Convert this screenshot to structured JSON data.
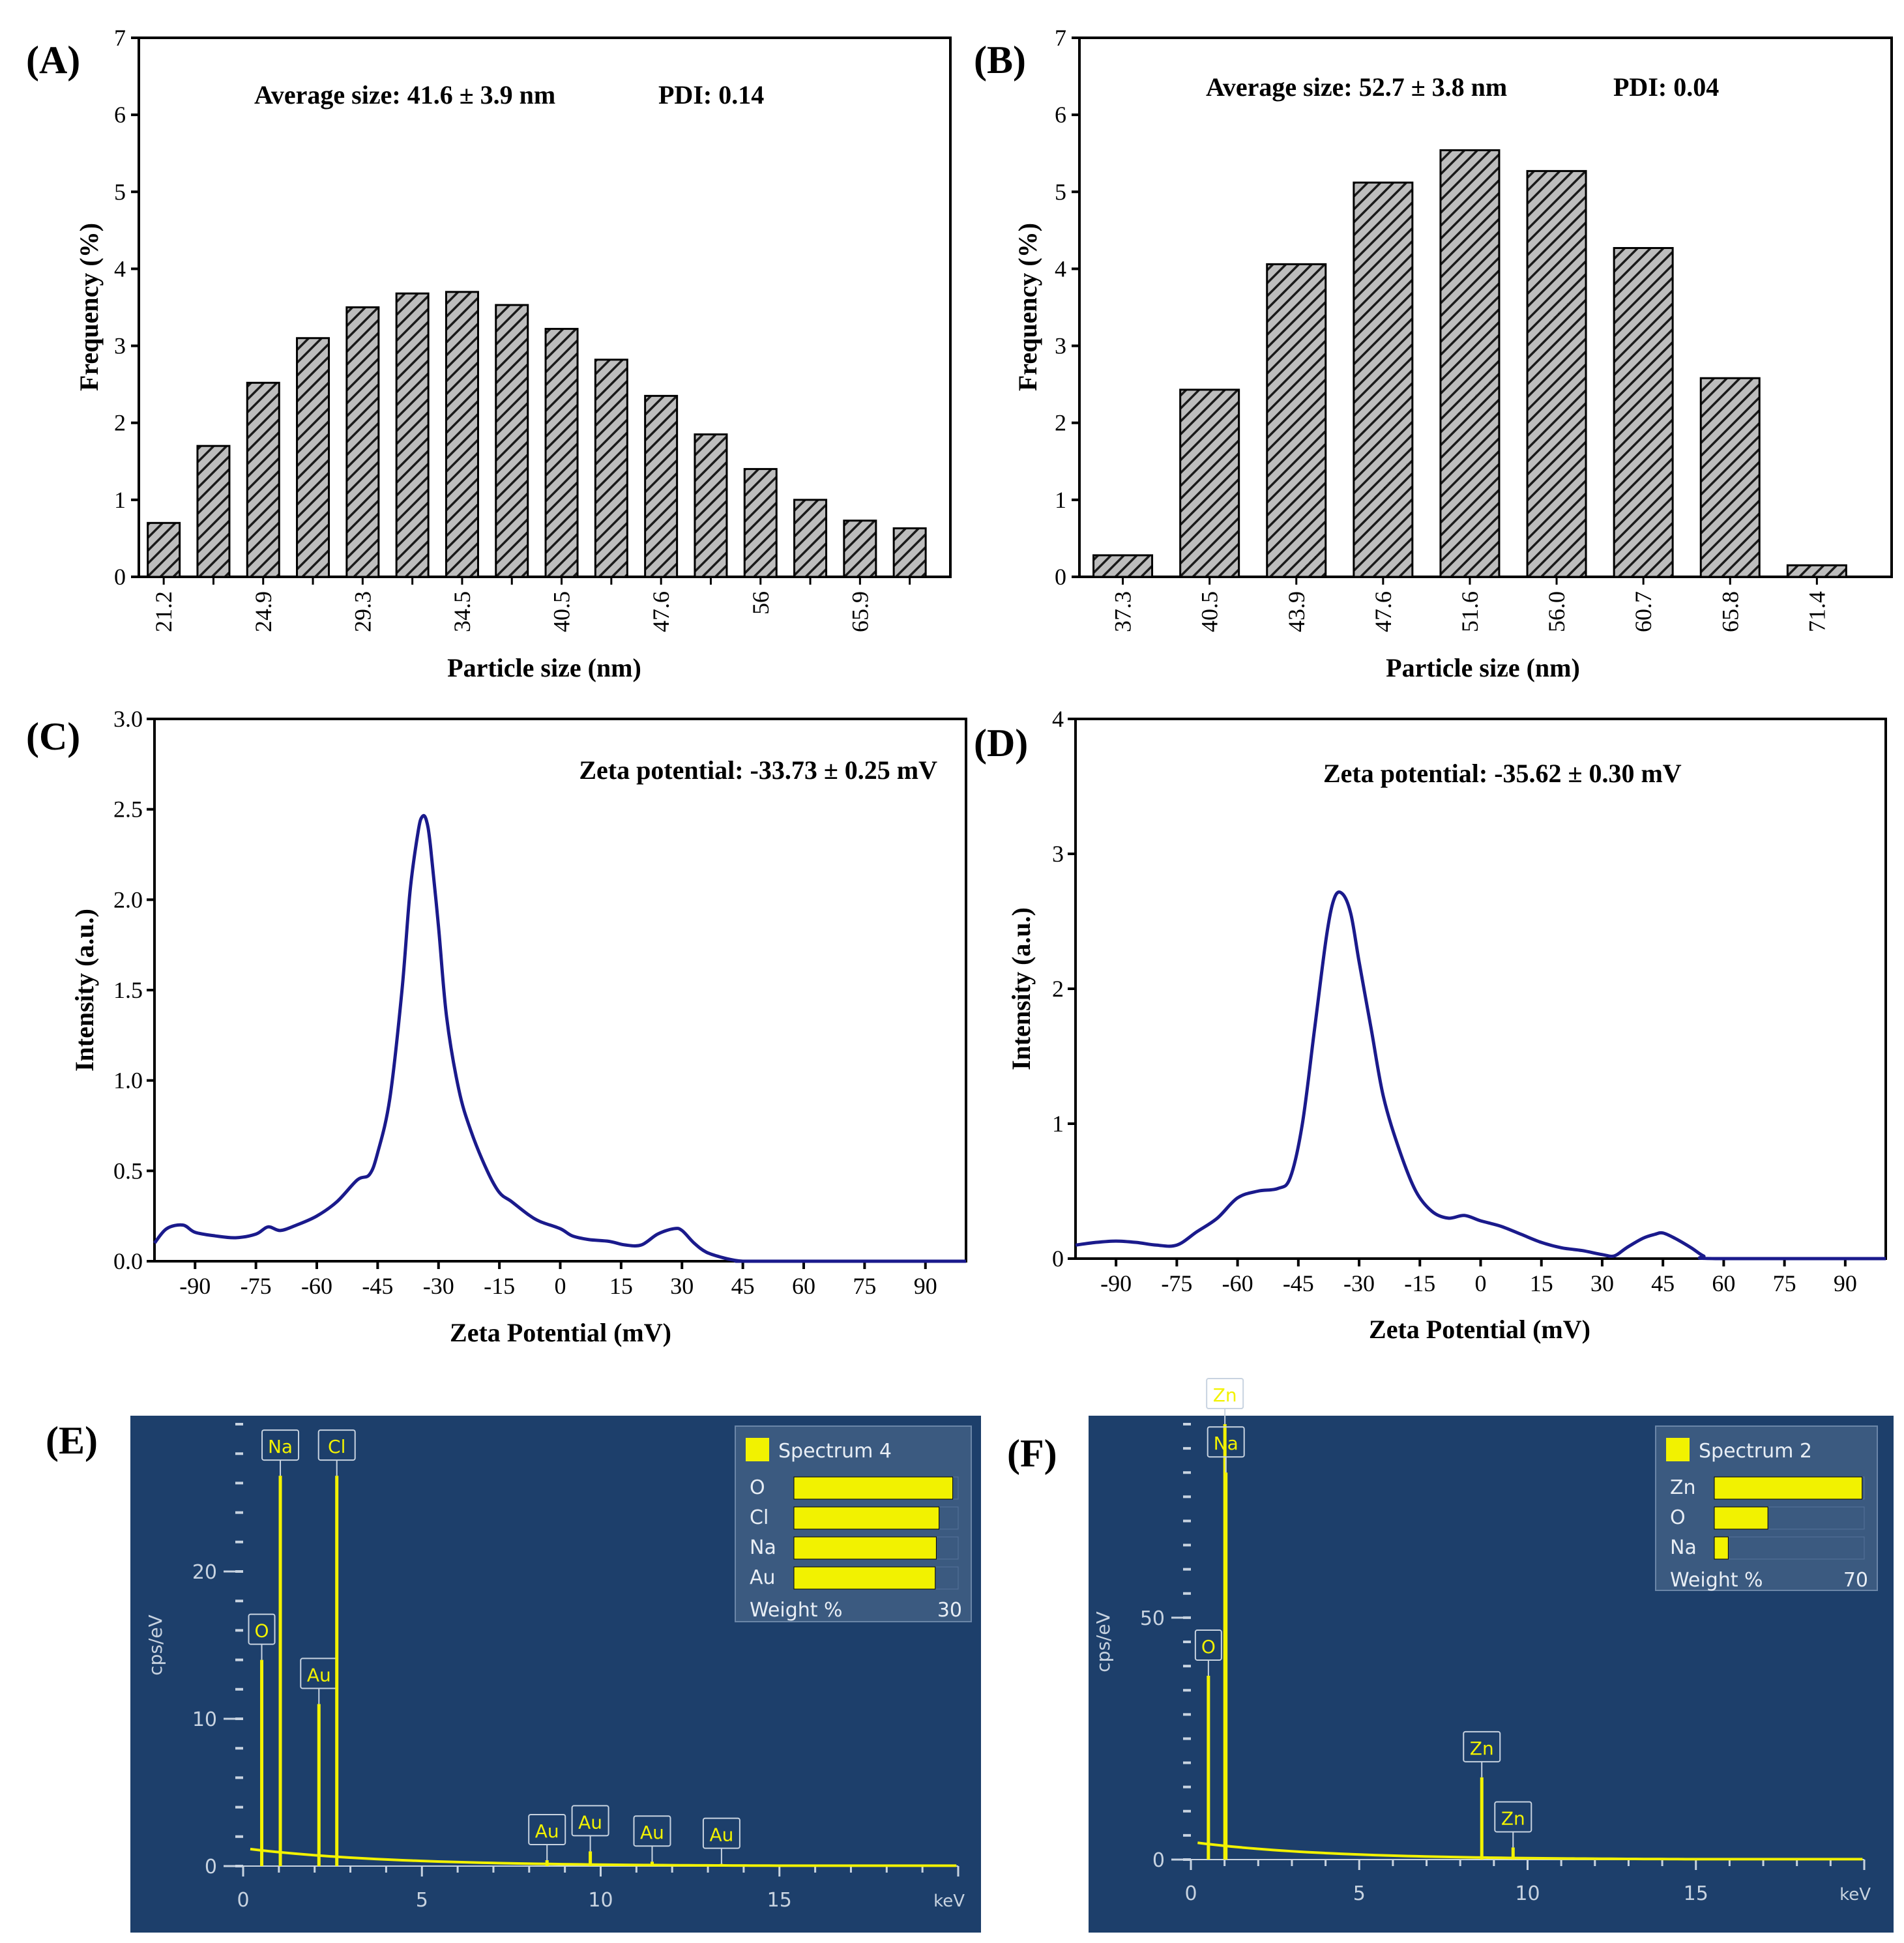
{
  "colors": {
    "bar_fill": "#8a8a8a",
    "zeta_line": "#1a1a8c",
    "eds_bg": "#1d3f6b",
    "eds_panel": "#3b5a80",
    "eds_yellow": "#f2f200",
    "eds_axis": "#c8d3e0"
  },
  "chart_data": [
    {
      "id": "A",
      "panel_label": "(A)",
      "type": "bar",
      "xlabel": "Particle size (nm)",
      "ylabel": "Frequency (%)",
      "ylim": [
        0,
        7
      ],
      "yticks": [
        "0",
        "1",
        "2",
        "3",
        "4",
        "5",
        "6",
        "7"
      ],
      "annotation1": "Average size: 41.6  ± 3.9 nm",
      "annotation2": "PDI: 0.14",
      "categories": [
        "21.2",
        "",
        "24.9",
        "",
        "29.3",
        "",
        "34.5",
        "",
        "40.5",
        "",
        "47.6",
        "",
        "56",
        "",
        "65.9",
        ""
      ],
      "values": [
        0.7,
        1.7,
        2.52,
        3.1,
        3.5,
        3.68,
        3.7,
        3.53,
        3.22,
        2.82,
        2.35,
        1.85,
        1.4,
        1.0,
        0.73,
        0.63
      ]
    },
    {
      "id": "B",
      "panel_label": "(B)",
      "type": "bar",
      "xlabel": "Particle size (nm)",
      "ylabel": "Frequency (%)",
      "ylim": [
        0,
        7
      ],
      "yticks": [
        "0",
        "1",
        "2",
        "3",
        "4",
        "5",
        "6",
        "7"
      ],
      "annotation1": "Average size:  52.7 ± 3.8 nm",
      "annotation2": "PDI: 0.04",
      "categories": [
        "37.3",
        "40.5",
        "43.9",
        "47.6",
        "51.6",
        "56.0",
        "60.7",
        "65.8",
        "71.4"
      ],
      "values": [
        0.28,
        2.43,
        4.06,
        5.12,
        5.54,
        5.27,
        4.27,
        2.58,
        0.15
      ]
    },
    {
      "id": "C",
      "panel_label": "(C)",
      "type": "line",
      "xlabel": "Zeta Potential (mV)",
      "ylabel": "Intensity (a.u.)",
      "xlim": [
        -100,
        100
      ],
      "ylim": [
        0,
        3.0
      ],
      "xticks": [
        "-90",
        "-75",
        "-60",
        "-45",
        "-30",
        "-15",
        "0",
        "15",
        "30",
        "45",
        "60",
        "75",
        "90"
      ],
      "yticks": [
        "0.0",
        "0.5",
        "1.0",
        "1.5",
        "2.0",
        "2.5",
        "3.0"
      ],
      "annotation": "Zeta potential: -33.73 ± 0.25 mV",
      "x": [
        -100,
        -97,
        -93,
        -90,
        -85,
        -80,
        -75,
        -72,
        -69,
        -65,
        -60,
        -55,
        -50,
        -47,
        -45,
        -42,
        -39,
        -37,
        -35,
        -34,
        -33,
        -32,
        -30,
        -28,
        -25,
        -22,
        -18,
        -15,
        -12,
        -8,
        -5,
        0,
        3,
        7,
        12,
        16,
        20,
        24,
        28,
        30,
        33,
        36,
        40,
        43,
        45,
        48,
        100
      ],
      "y": [
        0.1,
        0.18,
        0.2,
        0.16,
        0.14,
        0.13,
        0.15,
        0.19,
        0.17,
        0.2,
        0.25,
        0.33,
        0.45,
        0.48,
        0.6,
        0.9,
        1.5,
        2.05,
        2.38,
        2.46,
        2.44,
        2.3,
        1.85,
        1.35,
        0.95,
        0.72,
        0.5,
        0.38,
        0.33,
        0.26,
        0.22,
        0.18,
        0.14,
        0.12,
        0.11,
        0.09,
        0.09,
        0.15,
        0.18,
        0.17,
        0.1,
        0.05,
        0.02,
        0.005,
        0,
        0,
        0
      ]
    },
    {
      "id": "D",
      "panel_label": "(D)",
      "type": "line",
      "xlabel": "Zeta Potential (mV)",
      "ylabel": "Intensity (a.u.)",
      "xlim": [
        -100,
        100
      ],
      "ylim": [
        0,
        4
      ],
      "xticks": [
        "-90",
        "-75",
        "-60",
        "-45",
        "-30",
        "-15",
        "0",
        "15",
        "30",
        "45",
        "60",
        "75",
        "90"
      ],
      "yticks": [
        "0",
        "1",
        "2",
        "3",
        "4"
      ],
      "annotation": "Zeta potential: -35.62 ± 0.30 mV",
      "x": [
        -100,
        -95,
        -90,
        -85,
        -80,
        -75,
        -70,
        -65,
        -60,
        -55,
        -50,
        -47,
        -44,
        -41,
        -38,
        -36,
        -34,
        -32,
        -30,
        -27,
        -24,
        -20,
        -16,
        -12,
        -8,
        -4,
        0,
        5,
        10,
        15,
        20,
        25,
        30,
        33,
        36,
        40,
        43,
        45,
        48,
        52,
        55,
        58,
        100
      ],
      "y": [
        0.1,
        0.12,
        0.13,
        0.12,
        0.1,
        0.1,
        0.2,
        0.3,
        0.45,
        0.5,
        0.52,
        0.6,
        1.0,
        1.7,
        2.4,
        2.68,
        2.7,
        2.55,
        2.2,
        1.7,
        1.2,
        0.8,
        0.5,
        0.35,
        0.3,
        0.32,
        0.28,
        0.24,
        0.18,
        0.12,
        0.08,
        0.06,
        0.03,
        0.02,
        0.08,
        0.15,
        0.18,
        0.19,
        0.15,
        0.08,
        0.02,
        0,
        0
      ]
    },
    {
      "id": "E",
      "panel_label": "(E)",
      "type": "line",
      "xlabel": "keV",
      "ylabel": "cps/eV",
      "xlim": [
        0,
        20
      ],
      "ylim": [
        0,
        30
      ],
      "xticks": [
        "0",
        "5",
        "10",
        "15"
      ],
      "yticks": [
        "0",
        "10",
        "20"
      ],
      "legend_title": "Spectrum 4",
      "legend_axis_label": "Weight %",
      "legend_axis_max": "30",
      "legend_elements": [
        "O",
        "Cl",
        "Na",
        "Au"
      ],
      "legend_values": [
        29.0,
        26.5,
        26.0,
        25.8
      ],
      "peaks": [
        {
          "label": "O",
          "x": 0.52,
          "y": 14.0
        },
        {
          "label": "Na",
          "x": 1.04,
          "y": 26.5
        },
        {
          "label": "Au",
          "x": 2.12,
          "y": 11.0
        },
        {
          "label": "Cl",
          "x": 2.62,
          "y": 26.5
        },
        {
          "label": "Au",
          "x": 8.5,
          "y": 0.4
        },
        {
          "label": "Au",
          "x": 9.71,
          "y": 1.0
        },
        {
          "label": "Au",
          "x": 11.44,
          "y": 0.3
        },
        {
          "label": "Au",
          "x": 13.38,
          "y": 0.15
        }
      ]
    },
    {
      "id": "F",
      "panel_label": "(F)",
      "type": "line",
      "xlabel": "keV",
      "ylabel": "cps/eV",
      "xlim": [
        0,
        20
      ],
      "ylim": [
        0,
        90
      ],
      "xticks": [
        "0",
        "5",
        "10",
        "15"
      ],
      "yticks": [
        "0",
        "50"
      ],
      "legend_title": "Spectrum 2",
      "legend_axis_label": "Weight %",
      "legend_axis_max": "70",
      "legend_elements": [
        "Zn",
        "O",
        "Na"
      ],
      "legend_values": [
        69.0,
        25.0,
        6.5
      ],
      "peaks": [
        {
          "label": "O",
          "x": 0.52,
          "y": 38.0
        },
        {
          "label": "Zn",
          "x": 1.01,
          "y": 90.0
        },
        {
          "label": "Na",
          "x": 1.04,
          "y": 80.0
        },
        {
          "label": "Zn",
          "x": 8.64,
          "y": 17.0
        },
        {
          "label": "Zn",
          "x": 9.57,
          "y": 2.5
        }
      ]
    }
  ]
}
